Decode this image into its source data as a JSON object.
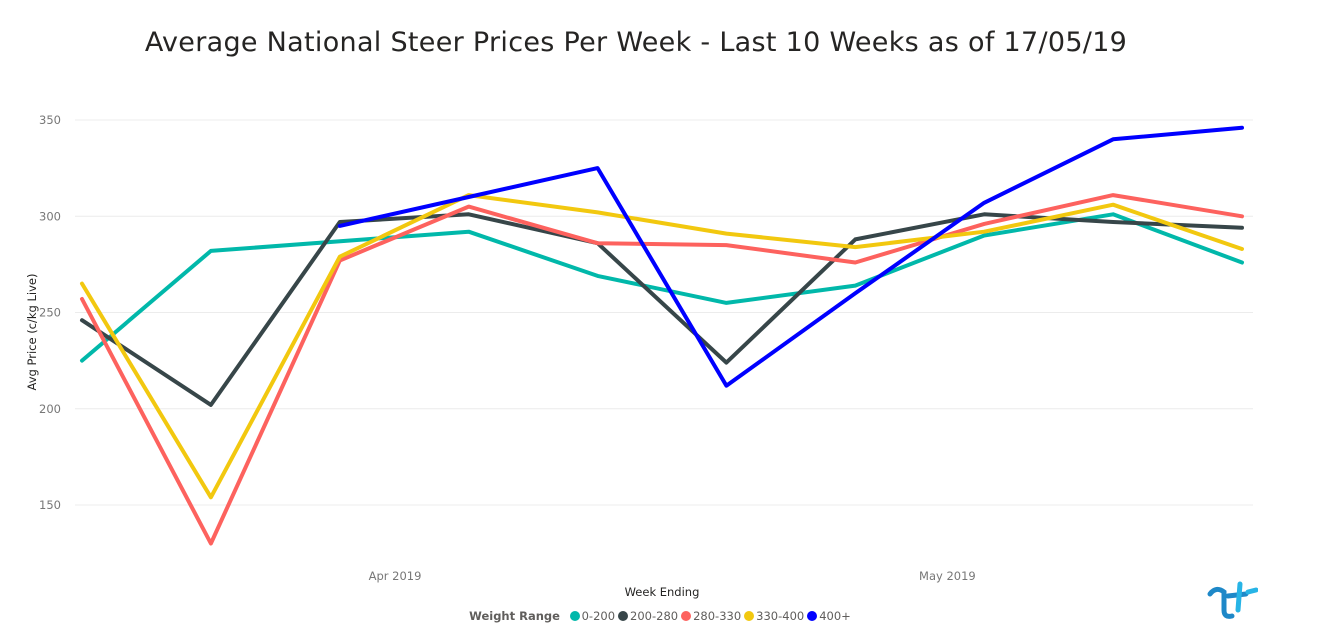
{
  "title": "Average National Steer Prices Per Week - Last 10 Weeks as of 17/05/19",
  "chart_data": {
    "type": "line",
    "title": "Average National Steer Prices Per Week - Last 10 Weeks as of 17/05/19",
    "xlabel": "Week Ending",
    "ylabel": "Avg Price (c/kg Live)",
    "x": [
      "2019-03-15",
      "2019-03-22",
      "2019-03-29",
      "2019-04-05",
      "2019-04-12",
      "2019-04-19",
      "2019-04-26",
      "2019-05-03",
      "2019-05-10",
      "2019-05-17"
    ],
    "x_tick_labels": [
      "Apr 2019",
      "May 2019"
    ],
    "y_ticks": [
      150,
      200,
      250,
      300,
      350
    ],
    "ylim": [
      120,
      355
    ],
    "grid": true,
    "legend_title": "Weight Range",
    "legend_position": "bottom",
    "series": [
      {
        "name": "0-200",
        "color": "#01B8AA",
        "values": [
          225,
          282,
          null,
          292,
          269,
          255,
          264,
          290,
          301,
          276
        ]
      },
      {
        "name": "200-280",
        "color": "#374649",
        "values": [
          246,
          202,
          297,
          301,
          286,
          224,
          288,
          301,
          297,
          294
        ]
      },
      {
        "name": "280-330",
        "color": "#FD625E",
        "values": [
          257,
          130,
          277,
          305,
          286,
          285,
          276,
          296,
          311,
          300
        ]
      },
      {
        "name": "330-400",
        "color": "#F2C80F",
        "values": [
          265,
          154,
          279,
          311,
          302,
          291,
          284,
          292,
          306,
          283
        ]
      },
      {
        "name": "400+",
        "color": "#0000FF",
        "values": [
          null,
          null,
          295,
          310,
          325,
          212,
          260,
          307,
          340,
          346
        ]
      }
    ]
  }
}
